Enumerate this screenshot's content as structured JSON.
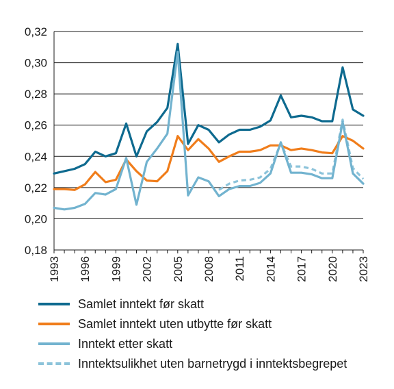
{
  "chart_data": {
    "type": "line",
    "title": "",
    "xlabel": "",
    "ylabel": "",
    "x": [
      1993,
      1994,
      1995,
      1996,
      1997,
      1998,
      1999,
      2000,
      2001,
      2002,
      2003,
      2004,
      2005,
      2006,
      2007,
      2008,
      2009,
      2010,
      2011,
      2012,
      2013,
      2014,
      2015,
      2016,
      2017,
      2018,
      2019,
      2020,
      2021,
      2022,
      2023
    ],
    "xticks": [
      "1993",
      "1996",
      "1999",
      "2002",
      "2005",
      "2008",
      "2011",
      "2014",
      "2017",
      "2020",
      "2023"
    ],
    "ylim": [
      0.18,
      0.32
    ],
    "yticks": [
      "0,32",
      "0,30",
      "0,28",
      "0,26",
      "0,24",
      "0,22",
      "0,20",
      "0,18"
    ],
    "ytick_values": [
      0.32,
      0.3,
      0.28,
      0.26,
      0.24,
      0.22,
      0.2,
      0.18
    ],
    "grid": true,
    "legend_position": "bottom",
    "series": [
      {
        "name": "Samlet inntekt før skatt",
        "color": "#0e6a8f",
        "dash": false,
        "values": [
          0.229,
          0.2305,
          0.232,
          0.235,
          0.243,
          0.24,
          0.242,
          0.261,
          0.24,
          0.256,
          0.262,
          0.271,
          0.312,
          0.248,
          0.26,
          0.257,
          0.249,
          0.254,
          0.257,
          0.257,
          0.259,
          0.263,
          0.279,
          0.265,
          0.266,
          0.265,
          0.2625,
          0.2625,
          0.297,
          0.27,
          0.266
        ]
      },
      {
        "name": "Samlet inntekt uten utbytte før skatt",
        "color": "#f07d1b",
        "dash": false,
        "values": [
          0.219,
          0.219,
          0.2185,
          0.222,
          0.23,
          0.2235,
          0.225,
          0.238,
          0.2305,
          0.2245,
          0.224,
          0.2305,
          0.253,
          0.244,
          0.251,
          0.245,
          0.2365,
          0.24,
          0.243,
          0.243,
          0.244,
          0.247,
          0.247,
          0.244,
          0.245,
          0.244,
          0.2425,
          0.242,
          0.253,
          0.25,
          0.245
        ]
      },
      {
        "name": "Inntekt etter skatt",
        "color": "#72b3cf",
        "dash": false,
        "values": [
          0.207,
          0.206,
          0.207,
          0.2095,
          0.2165,
          0.2155,
          0.219,
          0.239,
          0.209,
          0.2365,
          0.245,
          0.2545,
          0.307,
          0.215,
          0.2265,
          0.224,
          0.2145,
          0.219,
          0.221,
          0.221,
          0.223,
          0.229,
          0.249,
          0.2295,
          0.2295,
          0.2285,
          0.226,
          0.226,
          0.262,
          0.229,
          0.2225
        ]
      },
      {
        "name": "Inntektsulikhet uten barnetrygd i inntektsbegrepet",
        "color": "#8cc3da",
        "dash": true,
        "x": [
          2009,
          2010,
          2011,
          2012,
          2013,
          2014,
          2015,
          2016,
          2017,
          2018,
          2019,
          2020,
          2021,
          2022,
          2023
        ],
        "values": [
          0.2185,
          0.2225,
          0.2245,
          0.225,
          0.2265,
          0.232,
          0.2485,
          0.2335,
          0.2335,
          0.232,
          0.229,
          0.229,
          0.2635,
          0.2325,
          0.2255
        ]
      }
    ]
  }
}
